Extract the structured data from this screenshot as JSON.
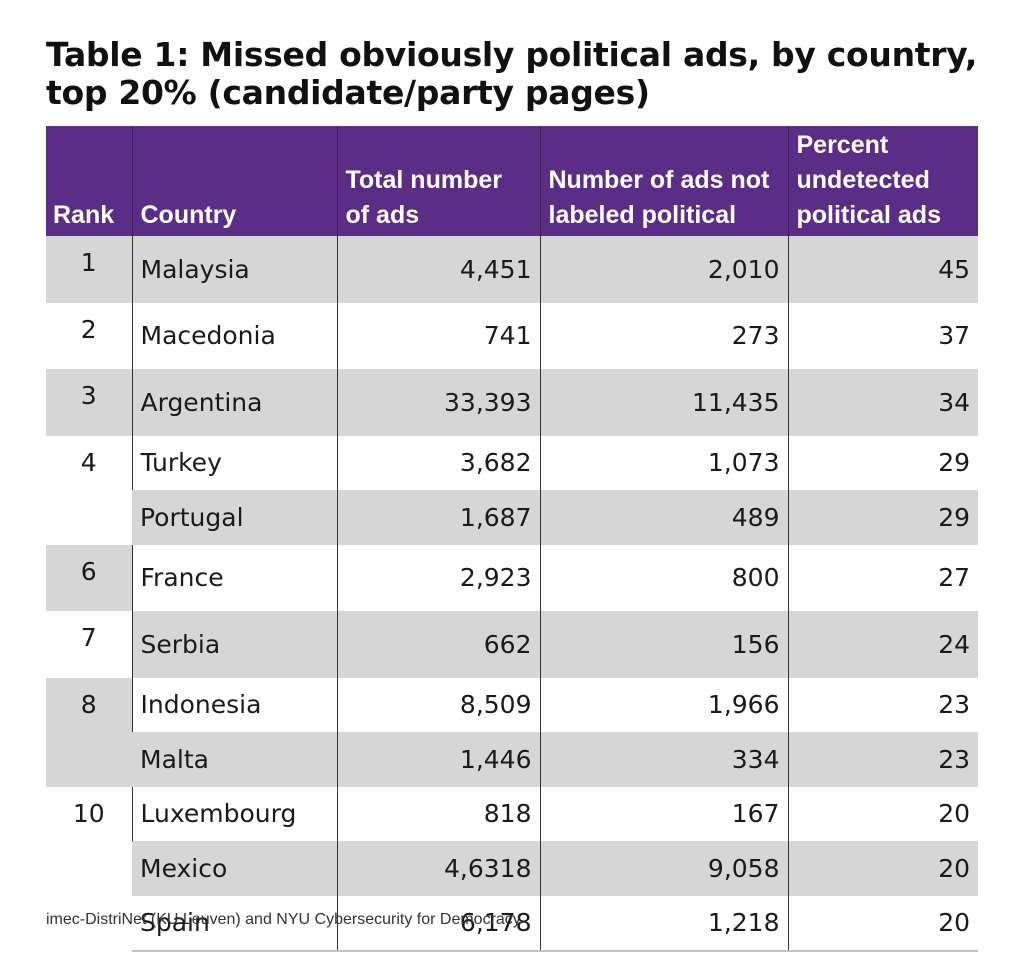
{
  "title": "Table 1: Missed obviously political ads, by country, top 20% (candidate/party pages)",
  "headers": {
    "rank": "Rank",
    "country": "Country",
    "total": "Total number of ads",
    "not_labeled": "Number of ads not labeled political",
    "percent": "Percent undetected political ads"
  },
  "rows": [
    {
      "rank": "1",
      "country": "Malaysia",
      "total": "4,451",
      "not_labeled": "2,010",
      "percent": "45"
    },
    {
      "rank": "2",
      "country": "Macedonia",
      "total": "741",
      "not_labeled": "273",
      "percent": "37"
    },
    {
      "rank": "3",
      "country": "Argentina",
      "total": "33,393",
      "not_labeled": "11,435",
      "percent": "34"
    },
    {
      "rank": "4",
      "country": "Turkey",
      "total": "3,682",
      "not_labeled": "1,073",
      "percent": "29"
    },
    {
      "rank": "",
      "country": "Portugal",
      "total": "1,687",
      "not_labeled": "489",
      "percent": "29"
    },
    {
      "rank": "6",
      "country": "France",
      "total": "2,923",
      "not_labeled": "800",
      "percent": "27"
    },
    {
      "rank": "7",
      "country": "Serbia",
      "total": "662",
      "not_labeled": "156",
      "percent": "24"
    },
    {
      "rank": "8",
      "country": "Indonesia",
      "total": "8,509",
      "not_labeled": "1,966",
      "percent": "23"
    },
    {
      "rank": "",
      "country": "Malta",
      "total": "1,446",
      "not_labeled": "334",
      "percent": "23"
    },
    {
      "rank": "10",
      "country": "Luxembourg",
      "total": "818",
      "not_labeled": "167",
      "percent": "20"
    },
    {
      "rank": "",
      "country": "Mexico",
      "total": "4,6318",
      "not_labeled": "9,058",
      "percent": "20"
    },
    {
      "rank": "",
      "country": "Spain",
      "total": "6,178",
      "not_labeled": "1,218",
      "percent": "20"
    }
  ],
  "source": "imec-DistriNet (KU Leuven) and NYU Cybersecurity for Democracy",
  "colors": {
    "header_bg": "#5b2d86",
    "header_text": "#ffffff",
    "shaded_row": "#d6d6d6",
    "plain_row": "#ffffff"
  }
}
